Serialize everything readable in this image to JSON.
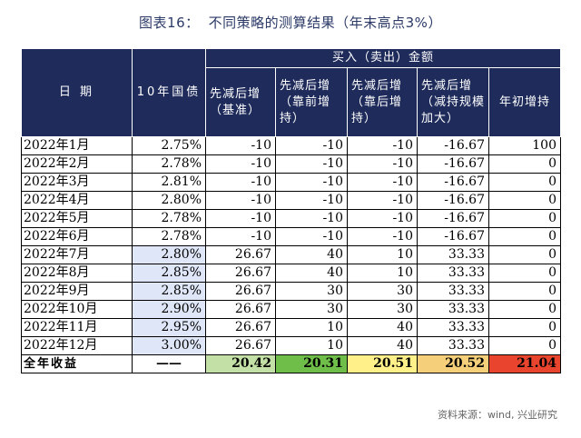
{
  "title": {
    "label": "图表16：",
    "text": "不同策略的测算结果（年末高点3%）"
  },
  "header": {
    "date": "日 期",
    "bond": "10年国债",
    "group": "买入（卖出）金额",
    "strategies": [
      "先减后增（基准）",
      "先减后增（靠前增持）",
      "先减后增（靠后增持）",
      "先减后增（减持规模加大）",
      "年初增持"
    ]
  },
  "rows": [
    {
      "date": "2022年1月",
      "yield": "2.75%",
      "v1": "-10",
      "v2": "-10",
      "v3": "-10",
      "v4": "-16.67",
      "v5": "100",
      "highlight": false
    },
    {
      "date": "2022年2月",
      "yield": "2.78%",
      "v1": "-10",
      "v2": "-10",
      "v3": "-10",
      "v4": "-16.67",
      "v5": "0",
      "highlight": false
    },
    {
      "date": "2022年3月",
      "yield": "2.81%",
      "v1": "-10",
      "v2": "-10",
      "v3": "-10",
      "v4": "-16.67",
      "v5": "0",
      "highlight": false
    },
    {
      "date": "2022年4月",
      "yield": "2.80%",
      "v1": "-10",
      "v2": "-10",
      "v3": "-10",
      "v4": "-16.67",
      "v5": "0",
      "highlight": false
    },
    {
      "date": "2022年5月",
      "yield": "2.78%",
      "v1": "-10",
      "v2": "-10",
      "v3": "-10",
      "v4": "-16.67",
      "v5": "0",
      "highlight": false
    },
    {
      "date": "2022年6月",
      "yield": "2.78%",
      "v1": "-10",
      "v2": "-10",
      "v3": "-10",
      "v4": "-16.67",
      "v5": "0",
      "highlight": false
    },
    {
      "date": "2022年7月",
      "yield": "2.80%",
      "v1": "26.67",
      "v2": "40",
      "v3": "10",
      "v4": "33.33",
      "v5": "0",
      "highlight": true
    },
    {
      "date": "2022年8月",
      "yield": "2.85%",
      "v1": "26.67",
      "v2": "40",
      "v3": "10",
      "v4": "33.33",
      "v5": "0",
      "highlight": true
    },
    {
      "date": "2022年9月",
      "yield": "2.85%",
      "v1": "26.67",
      "v2": "30",
      "v3": "30",
      "v4": "33.33",
      "v5": "0",
      "highlight": true
    },
    {
      "date": "2022年10月",
      "yield": "2.90%",
      "v1": "26.67",
      "v2": "30",
      "v3": "30",
      "v4": "33.33",
      "v5": "0",
      "highlight": true
    },
    {
      "date": "2022年11月",
      "yield": "2.95%",
      "v1": "26.67",
      "v2": "10",
      "v3": "40",
      "v4": "33.33",
      "v5": "0",
      "highlight": true
    },
    {
      "date": "2022年12月",
      "yield": "3.00%",
      "v1": "26.67",
      "v2": "10",
      "v3": "40",
      "v4": "33.33",
      "v5": "0",
      "highlight": true
    }
  ],
  "total": {
    "label": "全年收益",
    "dash": "——",
    "values": [
      "20.42",
      "20.31",
      "20.51",
      "20.52",
      "21.04"
    ],
    "colors": [
      "#c3e1a6",
      "#6fbe4a",
      "#fff08a",
      "#f5cf7a",
      "#e8442e"
    ]
  },
  "highlight_color": "#dfe6f7",
  "header_color": "#1f2c5b",
  "source": "资料来源：wind, 兴业研究"
}
